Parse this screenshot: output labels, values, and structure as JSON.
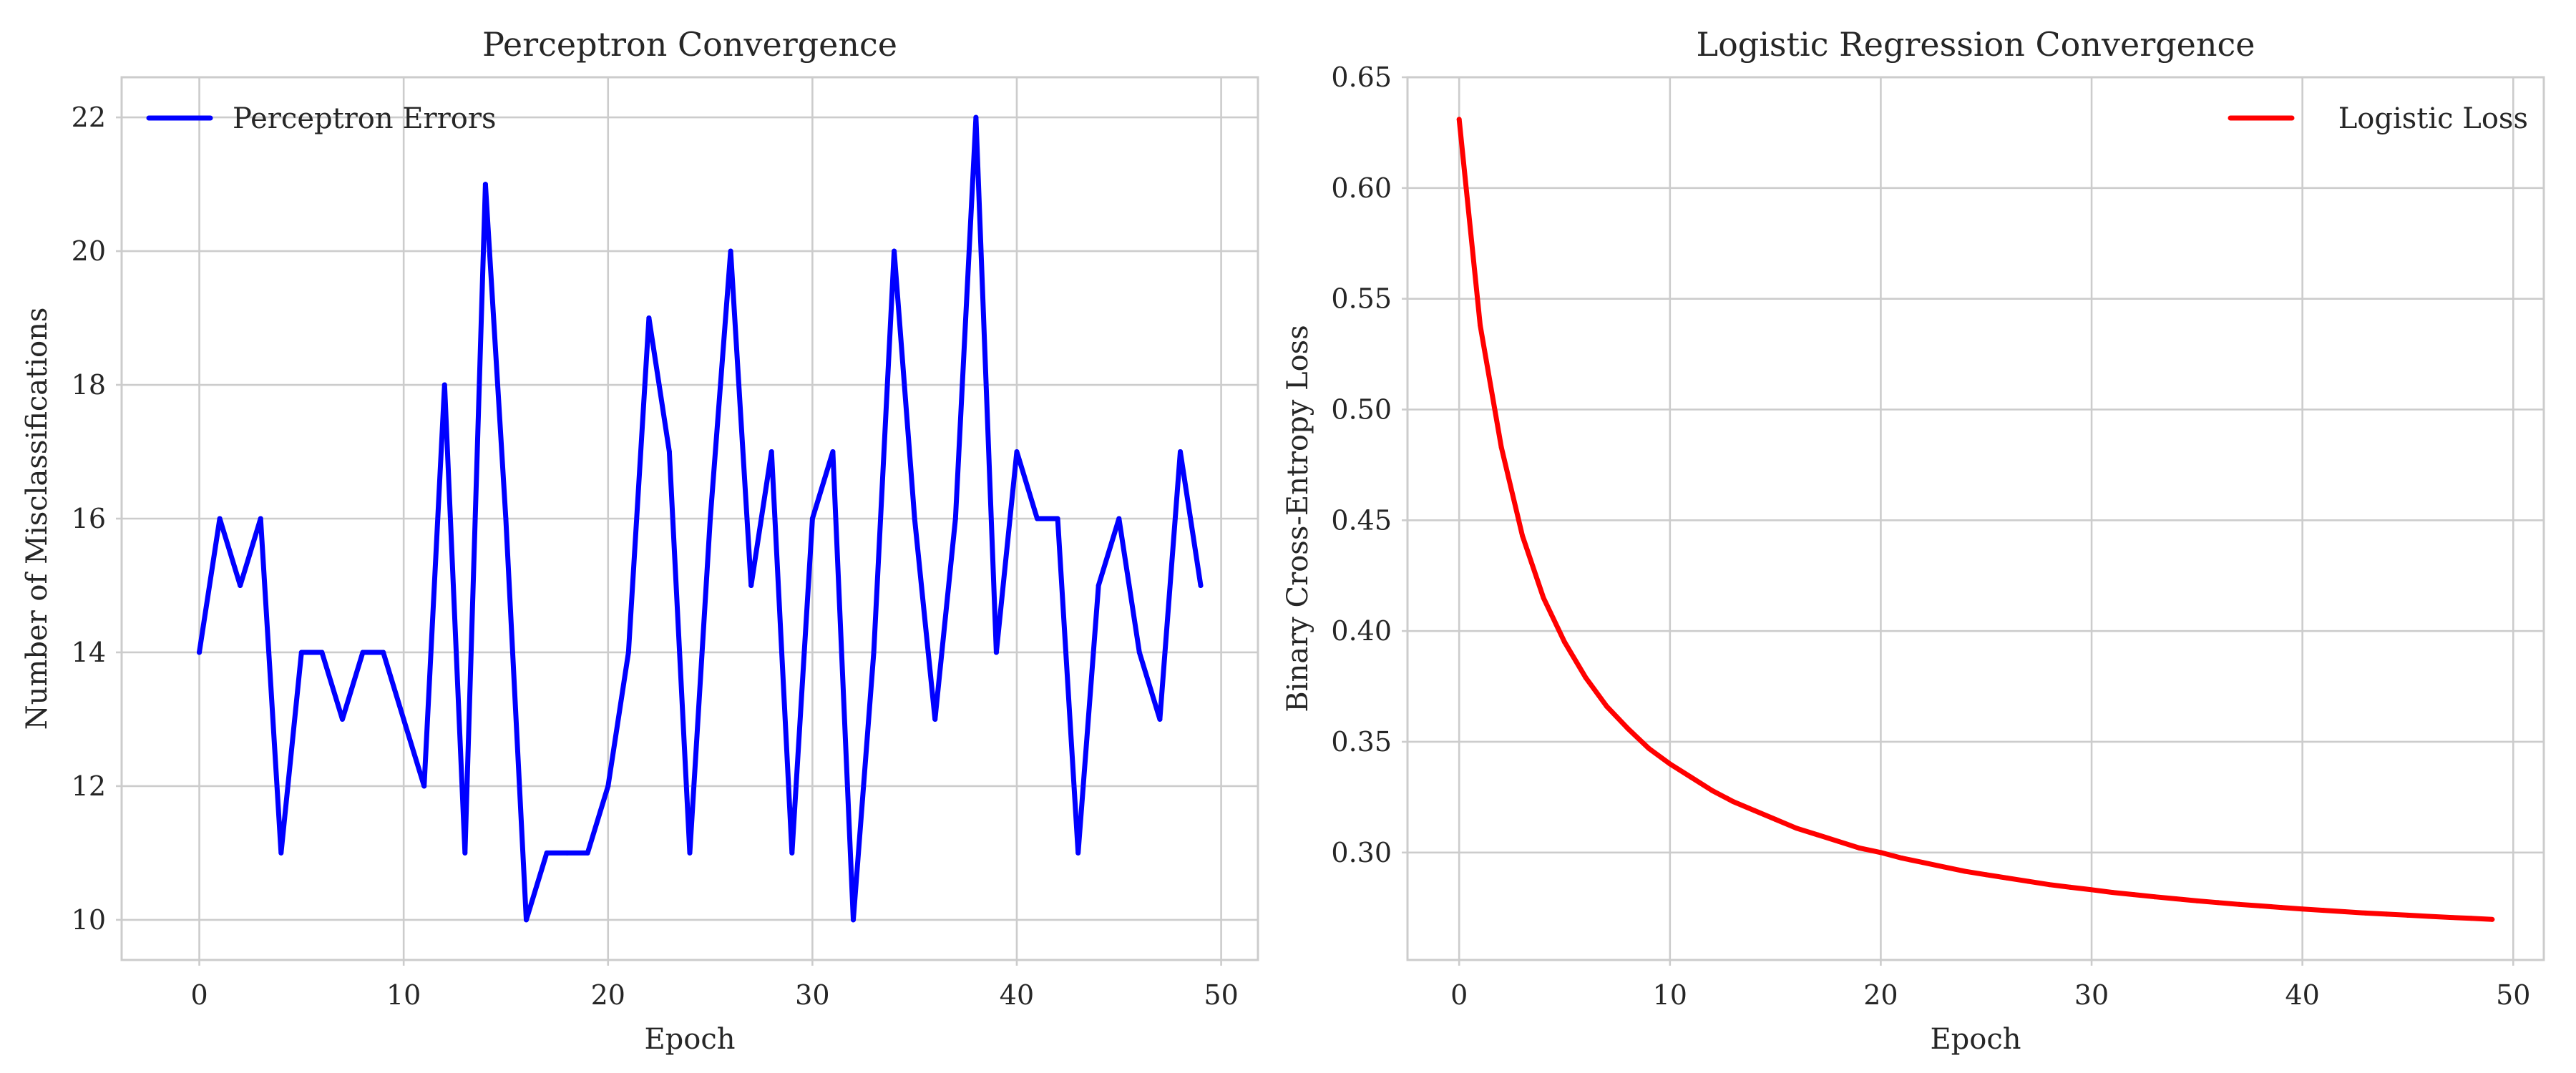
{
  "chart_data": [
    {
      "type": "line",
      "title": "Perceptron Convergence",
      "xlabel": "Epoch",
      "ylabel": "Number of Misclassifications",
      "xlim": [
        -3.8,
        51.8
      ],
      "ylim": [
        9.4,
        22.6
      ],
      "xticks": [
        0,
        10,
        20,
        30,
        40,
        50
      ],
      "yticks": [
        10,
        12,
        14,
        16,
        18,
        20,
        22
      ],
      "xtick_labels": [
        "0",
        "10",
        "20",
        "30",
        "40",
        "50"
      ],
      "ytick_labels": [
        "10",
        "12",
        "14",
        "16",
        "18",
        "20",
        "22"
      ],
      "grid": true,
      "legend_position": "upper left",
      "series": [
        {
          "name": "Perceptron Errors",
          "color": "#0000ff",
          "x": [
            0,
            1,
            2,
            3,
            4,
            5,
            6,
            7,
            8,
            9,
            10,
            11,
            12,
            13,
            14,
            15,
            16,
            17,
            18,
            19,
            20,
            21,
            22,
            23,
            24,
            25,
            26,
            27,
            28,
            29,
            30,
            31,
            32,
            33,
            34,
            35,
            36,
            37,
            38,
            39,
            40,
            41,
            42,
            43,
            44,
            45,
            46,
            47,
            48,
            49
          ],
          "values": [
            14,
            16,
            15,
            16,
            11,
            14,
            14,
            13,
            14,
            14,
            13,
            12,
            18,
            11,
            21,
            16,
            10,
            11,
            11,
            11,
            12,
            14,
            19,
            17,
            11,
            16,
            20,
            15,
            17,
            11,
            16,
            17,
            10,
            14,
            20,
            16,
            13,
            16,
            22,
            14,
            17,
            16,
            16,
            11,
            15,
            16,
            14,
            13,
            17,
            15
          ]
        }
      ]
    },
    {
      "type": "line",
      "title": "Logistic Regression Convergence",
      "xlabel": "Epoch",
      "ylabel": "Binary Cross-Entropy Loss",
      "xlim": [
        -2.45,
        51.45
      ],
      "ylim": [
        0.2515,
        0.65
      ],
      "xticks": [
        0,
        10,
        20,
        30,
        40,
        50
      ],
      "yticks": [
        0.3,
        0.35,
        0.4,
        0.45,
        0.5,
        0.55,
        0.6,
        0.65
      ],
      "xtick_labels": [
        "0",
        "10",
        "20",
        "30",
        "40",
        "50"
      ],
      "ytick_labels": [
        "0.30",
        "0.35",
        "0.40",
        "0.45",
        "0.50",
        "0.55",
        "0.60",
        "0.65"
      ],
      "grid": true,
      "legend_position": "upper right",
      "series": [
        {
          "name": "Logistic Loss",
          "color": "#ff0000",
          "x": [
            0,
            1,
            2,
            3,
            4,
            5,
            6,
            7,
            8,
            9,
            10,
            11,
            12,
            13,
            14,
            15,
            16,
            17,
            18,
            19,
            20,
            21,
            22,
            23,
            24,
            25,
            26,
            27,
            28,
            29,
            30,
            31,
            32,
            33,
            34,
            35,
            36,
            37,
            38,
            39,
            40,
            41,
            42,
            43,
            44,
            45,
            46,
            47,
            48,
            49
          ],
          "values": [
            0.631,
            0.538,
            0.483,
            0.443,
            0.415,
            0.395,
            0.379,
            0.366,
            0.356,
            0.347,
            0.34,
            0.334,
            0.328,
            0.323,
            0.319,
            0.315,
            0.311,
            0.308,
            0.305,
            0.302,
            0.3,
            0.2975,
            0.2955,
            0.2935,
            0.2915,
            0.29,
            0.2885,
            0.287,
            0.2855,
            0.2843,
            0.2832,
            0.282,
            0.281,
            0.28,
            0.2791,
            0.2782,
            0.2774,
            0.2766,
            0.2759,
            0.2752,
            0.2745,
            0.2739,
            0.2733,
            0.2727,
            0.2722,
            0.2717,
            0.2712,
            0.2707,
            0.2703,
            0.2698
          ]
        }
      ]
    }
  ]
}
